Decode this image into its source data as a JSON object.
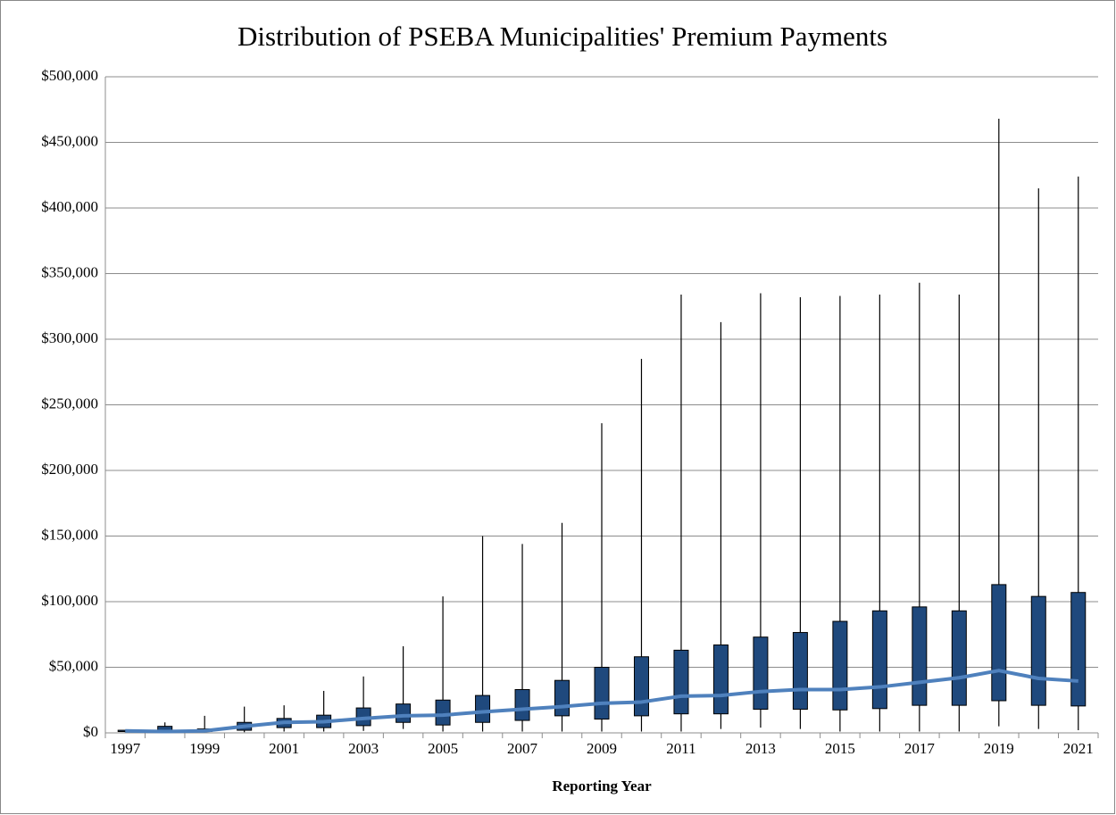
{
  "chart_data": {
    "type": "box",
    "title": "Distribution of PSEBA Municipalities' Premium Payments",
    "xlabel": "Reporting Year",
    "categories": [
      "1997",
      null,
      "1999",
      null,
      "2001",
      null,
      "2003",
      null,
      "2005",
      null,
      "2007",
      null,
      "2009",
      null,
      "2011",
      null,
      "2013",
      null,
      "2015",
      null,
      "2017",
      null,
      "2019",
      null,
      "2021"
    ],
    "high": [
      1500,
      8000,
      13000,
      20000,
      21000,
      32000,
      43000,
      66000,
      104000,
      150000,
      144000,
      160000,
      236000,
      285000,
      334000,
      313000,
      335000,
      332000,
      333000,
      334000,
      343000,
      334000,
      468000,
      415000,
      424000
    ],
    "low": [
      500,
      200,
      300,
      500,
      1000,
      1000,
      1500,
      3000,
      1000,
      1000,
      1000,
      1000,
      1000,
      1000,
      1000,
      3000,
      4000,
      3000,
      1000,
      1000,
      1000,
      1000,
      5000,
      3000,
      2000
    ],
    "q1": [
      1000,
      500,
      1000,
      2000,
      4000,
      4000,
      5500,
      8000,
      6000,
      8000,
      9500,
      13000,
      10500,
      13000,
      14500,
      14500,
      18000,
      18000,
      17500,
      18500,
      21000,
      21000,
      24500,
      21000,
      20500
    ],
    "q3": [
      2000,
      5000,
      3000,
      8000,
      11000,
      13500,
      19000,
      22000,
      25000,
      28500,
      33000,
      40000,
      50000,
      58000,
      63000,
      67000,
      73000,
      76500,
      85000,
      93000,
      96000,
      93000,
      113000,
      104000,
      107000
    ],
    "median": [
      1500,
      1000,
      1500,
      5000,
      8000,
      8500,
      11000,
      13000,
      13500,
      16000,
      18000,
      20000,
      22500,
      23500,
      28000,
      28500,
      31500,
      33000,
      33000,
      35000,
      38500,
      42000,
      47500,
      41500,
      39500
    ],
    "box_color": "#1f497d",
    "line_color": "#4f81bd",
    "whisker_color": "#000000",
    "ylim": [
      0,
      500000
    ],
    "yticks": [
      {
        "value": 0,
        "label": "$0"
      },
      {
        "value": 50000,
        "label": "$50,000"
      },
      {
        "value": 100000,
        "label": "$100,000"
      },
      {
        "value": 150000,
        "label": "$150,000"
      },
      {
        "value": 200000,
        "label": "$200,000"
      },
      {
        "value": 250000,
        "label": "$250,000"
      },
      {
        "value": 300000,
        "label": "$300,000"
      },
      {
        "value": 350000,
        "label": "$350,000"
      },
      {
        "value": 400000,
        "label": "$400,000"
      },
      {
        "value": 450000,
        "label": "$450,000"
      },
      {
        "value": 500000,
        "label": "$500,000"
      }
    ],
    "grid": true
  }
}
